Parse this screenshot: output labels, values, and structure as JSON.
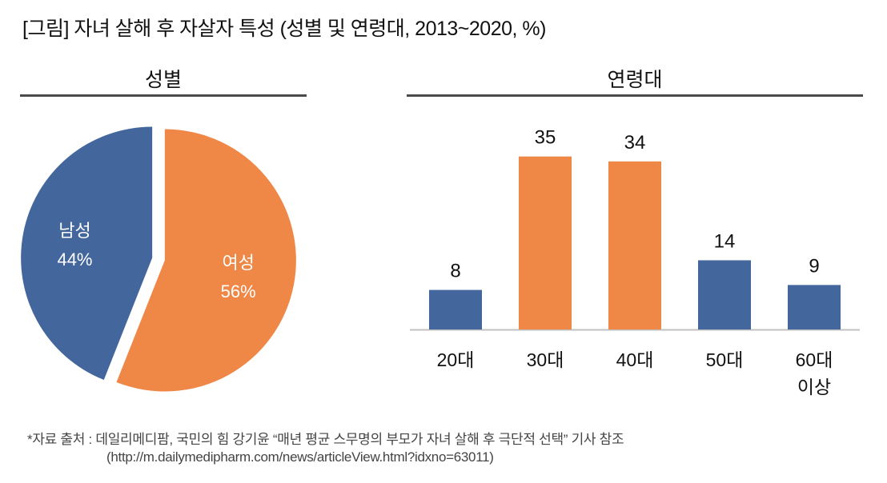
{
  "title": "[그림] 자녀 살해 후 자살자 특성 (성별 및 연령대, 2013~2020, %)",
  "colors": {
    "blue": "#43679d",
    "orange": "#ef8747",
    "axis": "#c0c0c0",
    "rule": "#4a4a4a"
  },
  "chart_data": [
    {
      "type": "pie",
      "title": "성별",
      "slices": [
        {
          "label": "남성",
          "value": 44,
          "display": "44%",
          "color": "#43679d"
        },
        {
          "label": "여성",
          "value": 56,
          "display": "56%",
          "color": "#ef8747"
        }
      ],
      "exploded": true
    },
    {
      "type": "bar",
      "title": "연령대",
      "categories": [
        "20대",
        "30대",
        "40대",
        "50대",
        "60대 이상"
      ],
      "category_lines": [
        [
          "20대"
        ],
        [
          "30대"
        ],
        [
          "40대"
        ],
        [
          "50대"
        ],
        [
          "60대",
          "이상"
        ]
      ],
      "values": [
        8,
        35,
        34,
        14,
        9
      ],
      "colors": [
        "#43679d",
        "#ef8747",
        "#ef8747",
        "#43679d",
        "#43679d"
      ],
      "xlabel": "",
      "ylabel": "",
      "ylim": [
        0,
        35
      ],
      "grid": false,
      "data_labels": true
    }
  ],
  "source": {
    "line1": "*자료 출처 : 데일리메디팜, 국민의 힘 강기윤 “매년 평균 스무명의 부모가 자녀 살해 후 극단적 선택” 기사 참조",
    "line2": "(http://m.dailymedipharm.com/news/articleView.html?idxno=63011)"
  }
}
